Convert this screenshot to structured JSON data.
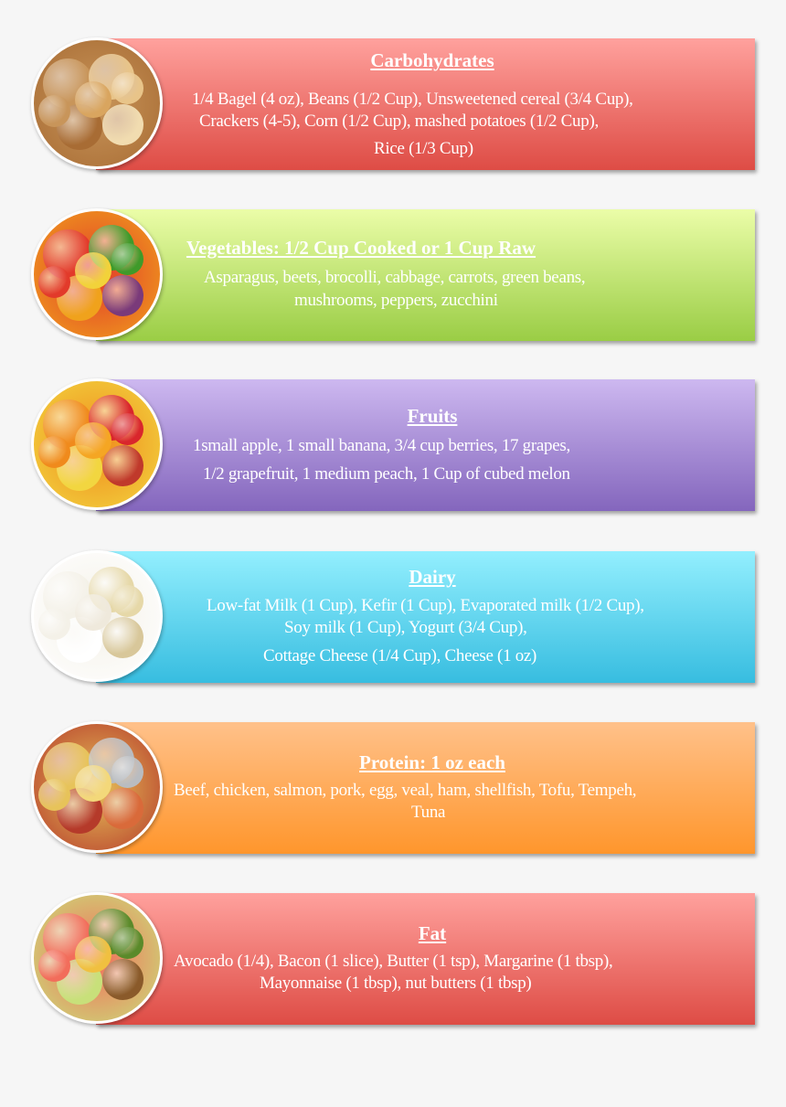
{
  "sections": [
    {
      "title": "Carbohydrates",
      "lines": [
        "1/4 Bagel (4 oz), Beans (1/2 Cup), Unsweetened cereal (3/4 Cup),",
        "Crackers (4-5), Corn (1/2 Cup), mashed potatoes (1/2 Cup),",
        "Rice (1/3 Cup)"
      ],
      "colors": [
        "#ffa19d",
        "#de4c45"
      ],
      "image": "bread-grains-image"
    },
    {
      "title": "Vegetables: 1/2 Cup Cooked or 1 Cup Raw",
      "lines": [
        "Asparagus, beets, brocolli, cabbage, carrots, green beans,",
        "mushrooms, peppers, zucchini"
      ],
      "colors": [
        "#ebfda8",
        "#9acd45"
      ],
      "image": "vegetables-image"
    },
    {
      "title": "Fruits",
      "lines": [
        "1small apple, 1 small banana, 3/4 cup berries, 17 grapes,",
        "1/2 grapefruit, 1 medium peach, 1 Cup of cubed melon"
      ],
      "colors": [
        "#cdb8f0",
        "#8466bd"
      ],
      "image": "fruits-image"
    },
    {
      "title": "Dairy",
      "lines": [
        "Low-fat Milk (1 Cup), Kefir (1 Cup), Evaporated milk (1/2 Cup),",
        "Soy milk (1 Cup), Yogurt (3/4 Cup),",
        "Cottage Cheese (1/4 Cup), Cheese (1 oz)"
      ],
      "colors": [
        "#93effe",
        "#37bde0"
      ],
      "image": "dairy-image"
    },
    {
      "title": "Protein: 1 oz each",
      "lines": [
        "Beef, chicken, salmon, pork, egg, veal, ham, shellfish, Tofu, Tempeh,",
        "Tuna"
      ],
      "colors": [
        "#ffc18a",
        "#ff962c"
      ],
      "image": "protein-image"
    },
    {
      "title": "Fat",
      "lines": [
        "Avocado (1/4),  Bacon (1 slice), Butter (1 tsp), Margarine (1 tbsp),",
        "Mayonnaise (1 tbsp), nut butters (1 tbsp)"
      ],
      "colors": [
        "#ffa19d",
        "#de4c45"
      ],
      "image": "fats-image"
    }
  ]
}
